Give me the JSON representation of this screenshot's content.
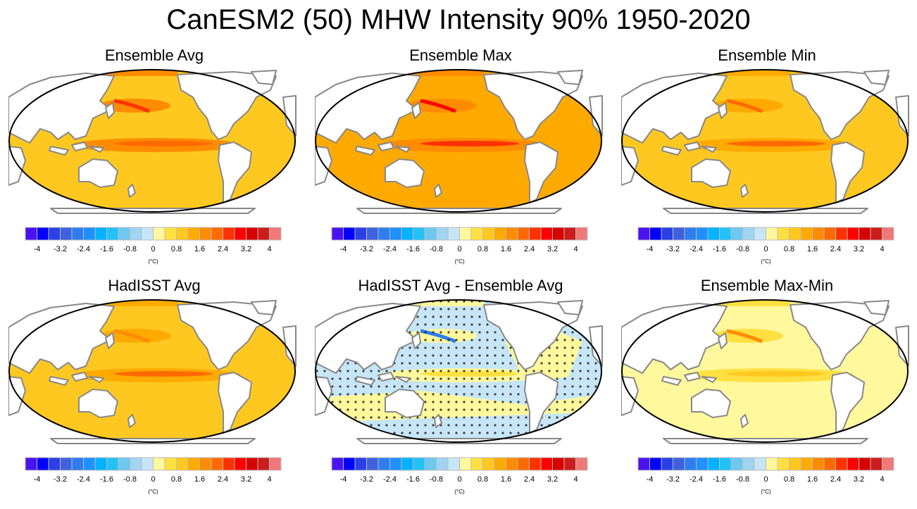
{
  "title": "CanESM2 (50) MHW Intensity 90% 1950-2020",
  "panels": [
    {
      "title": "Ensemble Avg",
      "style": "avg"
    },
    {
      "title": "Ensemble Max",
      "style": "max"
    },
    {
      "title": "Ensemble Min",
      "style": "min"
    },
    {
      "title": "HadISST Avg",
      "style": "obs"
    },
    {
      "title": "HadISST Avg - Ensemble Avg",
      "style": "diff"
    },
    {
      "title": "Ensemble Max-Min",
      "style": "range"
    }
  ],
  "colorbar": {
    "colors": [
      "#4a12f2",
      "#0000ff",
      "#2a40e6",
      "#3e62df",
      "#2d7def",
      "#1e90ff",
      "#00b2ff",
      "#22c2f8",
      "#6ec8f0",
      "#a0d4f0",
      "#c6e6f8",
      "#fff89c",
      "#ffe040",
      "#ffc820",
      "#ffaa00",
      "#ff8c00",
      "#ff6a00",
      "#ff3200",
      "#ff0000",
      "#d80000",
      "#cc1c1c",
      "#f07878"
    ],
    "labels": [
      "-4",
      "-3.2",
      "-2.4",
      "-1.6",
      "-0.8",
      "0",
      "0.8",
      "1.6",
      "2.4",
      "3.2",
      "4"
    ],
    "units": "(°C)"
  }
}
